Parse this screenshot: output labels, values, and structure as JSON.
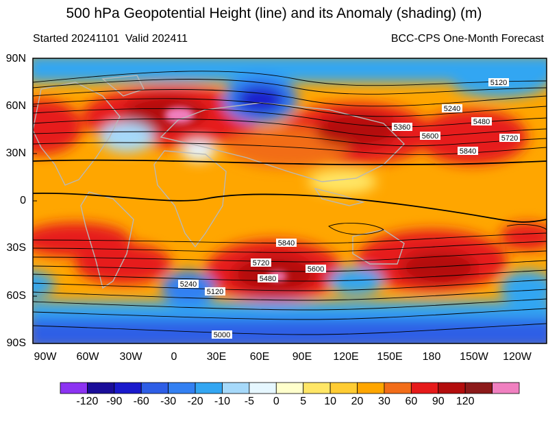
{
  "title": "500 hPa Geopotential Height (line) and its Anomaly (shading) (m)",
  "subtitle_left": "Started 20241101  Valid 202411",
  "subtitle_right": "BCC-CPS One-Month Forecast",
  "lat_labels": [
    "90N",
    "60N",
    "30N",
    "0",
    "30S",
    "60S",
    "90S"
  ],
  "lon_labels": [
    "90W",
    "60W",
    "30W",
    "0",
    "30E",
    "60E",
    "90E",
    "120E",
    "150E",
    "180",
    "150W",
    "120W"
  ],
  "contour_labels": [
    "5120",
    "5240",
    "5360",
    "5480",
    "5600",
    "5720",
    "5840",
    "5840",
    "5720",
    "5600",
    "5480",
    "5240",
    "5120",
    "5000"
  ],
  "colorbar": {
    "labels": [
      "-120",
      "-90",
      "-60",
      "-30",
      "-20",
      "-10",
      "-5",
      "0",
      "5",
      "10",
      "20",
      "30",
      "60",
      "90",
      "120"
    ],
    "colors": [
      "#8c33f2",
      "#1a0d99",
      "#1a1acc",
      "#2e5ee6",
      "#3380f2",
      "#33a6f2",
      "#a6d9fa",
      "#e6f7ff",
      "#ffffcc",
      "#ffe666",
      "#ffcc33",
      "#ffa600",
      "#f26d19",
      "#e61a1a",
      "#b30d0d",
      "#8c1a1a",
      "#f080c0"
    ]
  }
}
